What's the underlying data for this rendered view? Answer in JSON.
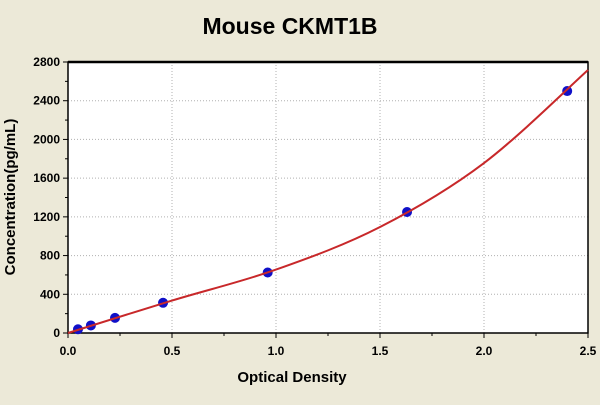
{
  "chart_data": {
    "type": "scatter",
    "title": "Mouse CKMT1B",
    "xlabel": "Optical Density",
    "ylabel": "Concentration(pg/mL)",
    "xlim": [
      0,
      2.5
    ],
    "ylim": [
      0,
      2800
    ],
    "xticks": [
      "0.0",
      "0.5",
      "1.0",
      "1.5",
      "2.0",
      "2.5"
    ],
    "yticks": [
      "0",
      "400",
      "800",
      "1200",
      "1600",
      "2000",
      "2400",
      "2800"
    ],
    "grid": true,
    "points": {
      "x": [
        0.048,
        0.11,
        0.226,
        0.457,
        0.96,
        1.63,
        2.4
      ],
      "y": [
        39,
        78,
        156,
        312,
        625,
        1250,
        2500
      ]
    },
    "fit_curve": {
      "x": [
        0,
        0.5,
        1.0,
        1.5,
        2.0,
        2.5
      ],
      "y": [
        0,
        335,
        655,
        1095,
        1756,
        2717
      ]
    },
    "colors": {
      "points": "#1010c8",
      "curve": "#c8282a",
      "background": "#ece9d8",
      "grid": "#b0b0b0"
    }
  }
}
